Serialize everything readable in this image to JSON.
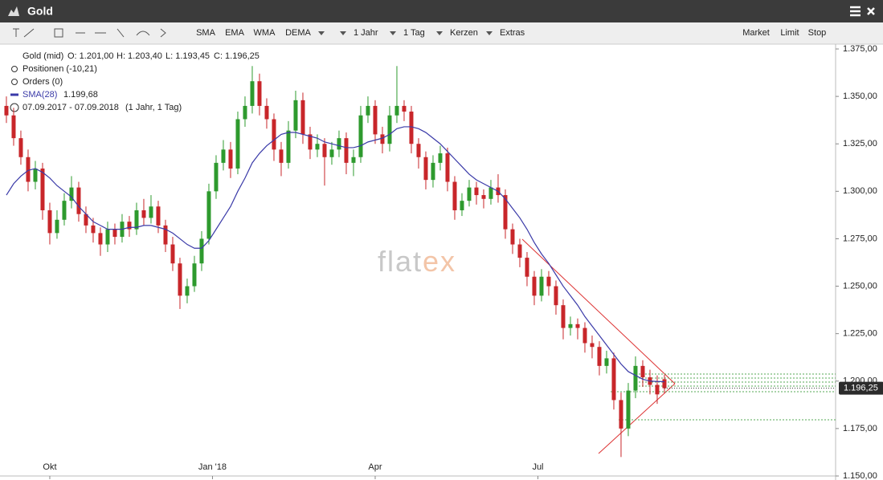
{
  "window": {
    "title": "Gold",
    "indicators": [
      "SMA",
      "EMA",
      "WMA",
      "DEMA"
    ],
    "dropdowns": [
      "1 Jahr",
      "1 Tag",
      "Kerzen",
      "Extras"
    ],
    "order_buttons": [
      "Market",
      "Limit",
      "Stop"
    ]
  },
  "legend": {
    "instrument": "Gold (mid)",
    "open": "O: 1.201,00",
    "high": "H: 1.203,40",
    "low": "L: 1.193,45",
    "close": "C: 1.196,25",
    "positions": "Positionen (-10,21)",
    "orders": "Orders (0)",
    "sma_value": "1.199,68",
    "range": "07.09.2017 - 07.09.2018",
    "period": "(1 Jahr, 1 Tag)"
  },
  "watermark": [
    "flat",
    "ex"
  ],
  "chart_data": {
    "type": "candlestick",
    "up_color": "#2e9a2e",
    "down_color": "#c8262a",
    "ohlc": [
      [
        1345,
        1350,
        1336,
        1340
      ],
      [
        1340,
        1344,
        1324,
        1328
      ],
      [
        1328,
        1332,
        1314,
        1318
      ],
      [
        1318,
        1322,
        1300,
        1305
      ],
      [
        1305,
        1316,
        1301,
        1312
      ],
      [
        1312,
        1315,
        1285,
        1290
      ],
      [
        1290,
        1294,
        1272,
        1278
      ],
      [
        1278,
        1290,
        1275,
        1285
      ],
      [
        1285,
        1299,
        1282,
        1295
      ],
      [
        1295,
        1308,
        1291,
        1302
      ],
      [
        1302,
        1305,
        1284,
        1288
      ],
      [
        1288,
        1292,
        1278,
        1282
      ],
      [
        1282,
        1286,
        1273,
        1278
      ],
      [
        1278,
        1281,
        1266,
        1272
      ],
      [
        1272,
        1284,
        1268,
        1280
      ],
      [
        1280,
        1283,
        1272,
        1276
      ],
      [
        1276,
        1288,
        1273,
        1284
      ],
      [
        1284,
        1287,
        1276,
        1280
      ],
      [
        1280,
        1294,
        1277,
        1290
      ],
      [
        1290,
        1296,
        1282,
        1286
      ],
      [
        1286,
        1298,
        1283,
        1292
      ],
      [
        1292,
        1295,
        1278,
        1282
      ],
      [
        1282,
        1285,
        1268,
        1272
      ],
      [
        1272,
        1276,
        1258,
        1262
      ],
      [
        1262,
        1265,
        1238,
        1245
      ],
      [
        1245,
        1254,
        1241,
        1250
      ],
      [
        1250,
        1266,
        1247,
        1262
      ],
      [
        1262,
        1279,
        1258,
        1275
      ],
      [
        1275,
        1304,
        1272,
        1300
      ],
      [
        1300,
        1319,
        1296,
        1315
      ],
      [
        1315,
        1327,
        1311,
        1322
      ],
      [
        1322,
        1326,
        1307,
        1312
      ],
      [
        1312,
        1342,
        1309,
        1338
      ],
      [
        1338,
        1350,
        1334,
        1345
      ],
      [
        1345,
        1366,
        1341,
        1358
      ],
      [
        1358,
        1362,
        1340,
        1345
      ],
      [
        1345,
        1349,
        1333,
        1338
      ],
      [
        1338,
        1341,
        1316,
        1322
      ],
      [
        1322,
        1326,
        1308,
        1315
      ],
      [
        1315,
        1337,
        1312,
        1332
      ],
      [
        1332,
        1353,
        1328,
        1348
      ],
      [
        1348,
        1352,
        1325,
        1330
      ],
      [
        1330,
        1334,
        1317,
        1322
      ],
      [
        1322,
        1330,
        1318,
        1325
      ],
      [
        1325,
        1328,
        1303,
        1318
      ],
      [
        1318,
        1326,
        1314,
        1322
      ],
      [
        1322,
        1332,
        1318,
        1328
      ],
      [
        1328,
        1331,
        1309,
        1315
      ],
      [
        1315,
        1322,
        1308,
        1318
      ],
      [
        1318,
        1345,
        1315,
        1340
      ],
      [
        1340,
        1350,
        1336,
        1345
      ],
      [
        1345,
        1348,
        1325,
        1330
      ],
      [
        1330,
        1334,
        1320,
        1325
      ],
      [
        1325,
        1345,
        1321,
        1340
      ],
      [
        1340,
        1366,
        1336,
        1345
      ],
      [
        1345,
        1348,
        1337,
        1342
      ],
      [
        1342,
        1345,
        1320,
        1325
      ],
      [
        1325,
        1328,
        1312,
        1318
      ],
      [
        1318,
        1321,
        1301,
        1306
      ],
      [
        1306,
        1319,
        1302,
        1315
      ],
      [
        1315,
        1324,
        1311,
        1320
      ],
      [
        1320,
        1323,
        1300,
        1305
      ],
      [
        1305,
        1308,
        1285,
        1290
      ],
      [
        1290,
        1299,
        1287,
        1295
      ],
      [
        1295,
        1306,
        1292,
        1302
      ],
      [
        1302,
        1305,
        1293,
        1298
      ],
      [
        1298,
        1301,
        1291,
        1296
      ],
      [
        1296,
        1306,
        1293,
        1302
      ],
      [
        1302,
        1309,
        1294,
        1298
      ],
      [
        1298,
        1301,
        1275,
        1280
      ],
      [
        1280,
        1283,
        1267,
        1272
      ],
      [
        1272,
        1275,
        1260,
        1265
      ],
      [
        1265,
        1268,
        1250,
        1255
      ],
      [
        1255,
        1258,
        1240,
        1245
      ],
      [
        1245,
        1259,
        1242,
        1255
      ],
      [
        1255,
        1258,
        1245,
        1250
      ],
      [
        1250,
        1253,
        1235,
        1240
      ],
      [
        1240,
        1243,
        1222,
        1228
      ],
      [
        1228,
        1234,
        1224,
        1230
      ],
      [
        1230,
        1233,
        1222,
        1228
      ],
      [
        1228,
        1231,
        1215,
        1220
      ],
      [
        1220,
        1224,
        1212,
        1218
      ],
      [
        1218,
        1221,
        1203,
        1208
      ],
      [
        1208,
        1216,
        1204,
        1212
      ],
      [
        1212,
        1215,
        1185,
        1190
      ],
      [
        1190,
        1194,
        1160,
        1175
      ],
      [
        1175,
        1199,
        1171,
        1195
      ],
      [
        1195,
        1213,
        1191,
        1208
      ],
      [
        1208,
        1211,
        1197,
        1202
      ],
      [
        1202,
        1206,
        1193,
        1198
      ],
      [
        1198,
        1203,
        1188,
        1193
      ],
      [
        1201.0,
        1203.4,
        1193.45,
        1196.25
      ]
    ],
    "sma": {
      "name": "SMA(28)",
      "color": "#3a3aa8",
      "values": [
        1298,
        1304,
        1308,
        1311,
        1312,
        1310,
        1307,
        1303,
        1300,
        1297,
        1292,
        1288,
        1284,
        1282,
        1280,
        1280,
        1280,
        1281,
        1281,
        1282,
        1282,
        1281,
        1280,
        1278,
        1275,
        1272,
        1270,
        1270,
        1274,
        1280,
        1286,
        1292,
        1300,
        1307,
        1315,
        1320,
        1324,
        1327,
        1330,
        1331,
        1331,
        1330,
        1329,
        1328,
        1326,
        1325,
        1324,
        1323,
        1323,
        1324,
        1326,
        1327,
        1328,
        1330,
        1333,
        1334,
        1334,
        1333,
        1331,
        1328,
        1325,
        1321,
        1317,
        1313,
        1309,
        1306,
        1304,
        1302,
        1300,
        1296,
        1291,
        1286,
        1280,
        1273,
        1267,
        1262,
        1256,
        1250,
        1245,
        1240,
        1234,
        1229,
        1224,
        1219,
        1214,
        1209,
        1205,
        1203,
        1201,
        1200,
        1199.8,
        1199.68
      ]
    },
    "last_price": {
      "value": 1196.25,
      "label": "1.196,25"
    },
    "xlim": [
      -0.33,
      114.67
    ],
    "xticks": [
      {
        "value": 6,
        "label": "Okt"
      },
      {
        "value": 28.5,
        "label": "Jan '18"
      },
      {
        "value": 51,
        "label": "Apr"
      },
      {
        "value": 73.5,
        "label": "Jul"
      }
    ],
    "ylim": [
      1150,
      1375
    ],
    "yticks": [
      {
        "value": 1150,
        "label": "1.150,00"
      },
      {
        "value": 1175,
        "label": "1.175,00"
      },
      {
        "value": 1200,
        "label": "1.200,00"
      },
      {
        "value": 1225,
        "label": "1.225,00"
      },
      {
        "value": 1250,
        "label": "1.250,00"
      },
      {
        "value": 1275,
        "label": "1.275,00"
      },
      {
        "value": 1300,
        "label": "1.300,00"
      },
      {
        "value": 1325,
        "label": "1.325,00"
      },
      {
        "value": 1350,
        "label": "1.350,00"
      },
      {
        "value": 1375,
        "label": "1.375,00"
      }
    ]
  }
}
